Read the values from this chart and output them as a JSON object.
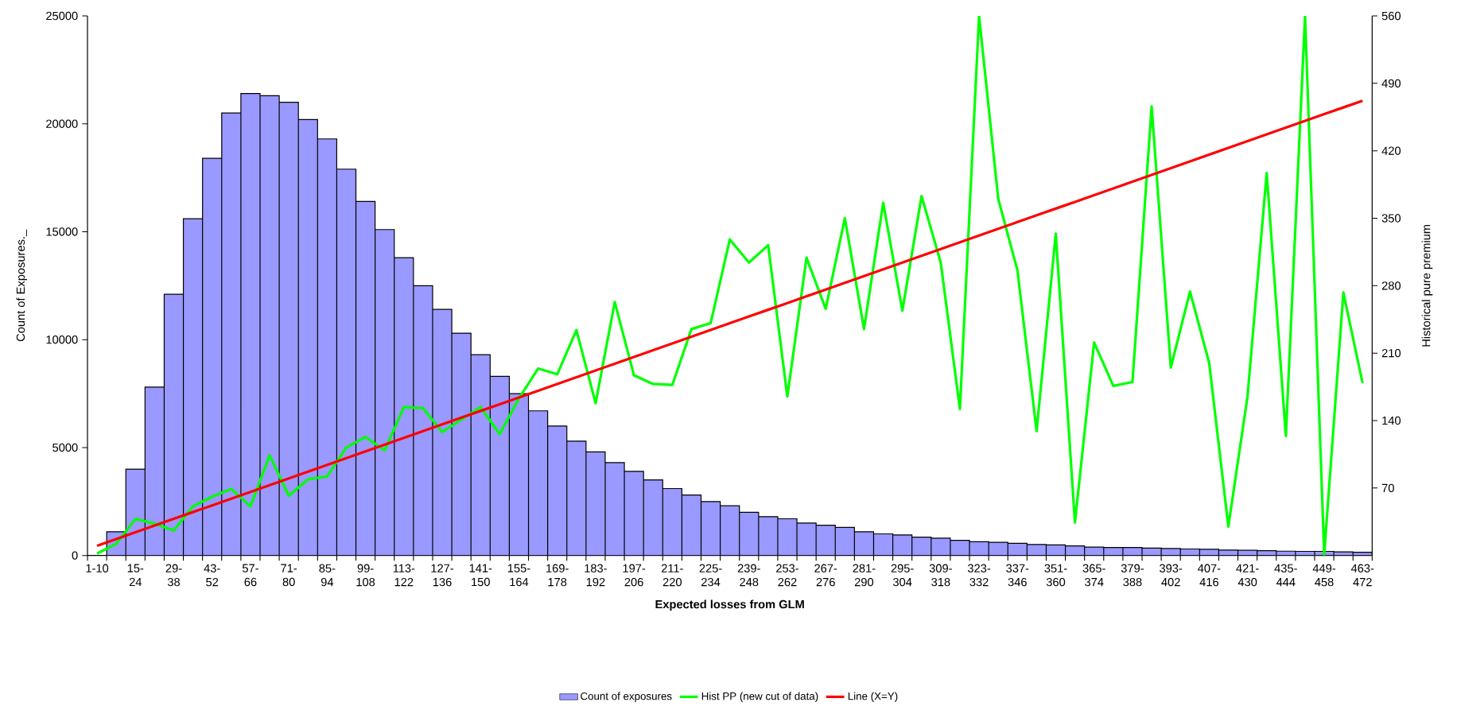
{
  "chart_data": {
    "type": "bar",
    "xlabel": "Expected losses from GLM",
    "ylabel": "Count of Exposures._",
    "y2label": "Historical pure premium",
    "categories": [
      "1-10",
      null,
      "15-24",
      null,
      "29-38",
      null,
      "43-52",
      null,
      "57-66",
      null,
      "71-80",
      null,
      "85-94",
      null,
      "99-108",
      null,
      "113-122",
      null,
      "127-136",
      null,
      "141-150",
      null,
      "155-164",
      null,
      "169-178",
      null,
      "183-192",
      null,
      "197-206",
      null,
      "211-220",
      null,
      "225-234",
      null,
      "239-248",
      null,
      "253-262",
      null,
      "267-276",
      null,
      "281-290",
      null,
      "295-304",
      null,
      "309-318",
      null,
      "323-332",
      null,
      "337-346",
      null,
      "351-360",
      null,
      "365-374",
      null,
      "379-388",
      null,
      "393-402",
      null,
      "407-416",
      null,
      "421-430",
      null,
      "435-444",
      null,
      "449-458",
      null,
      "463-472"
    ],
    "ylim": [
      0,
      25000
    ],
    "yticks": [
      0,
      5000,
      10000,
      15000,
      20000,
      25000
    ],
    "y2lim": [
      0,
      560
    ],
    "y2ticks": [
      70,
      140,
      210,
      280,
      350,
      420,
      490,
      560
    ],
    "legend": "bottom",
    "marker": "none",
    "series": [
      {
        "name": "Count of exposures",
        "color": "#9999ff",
        "values": [
          null,
          1100,
          4000,
          7800,
          12100,
          15600,
          18400,
          20500,
          21400,
          21300,
          21000,
          20200,
          19300,
          17900,
          16400,
          15100,
          13800,
          12500,
          11400,
          10300,
          9300,
          8300,
          7500,
          6700,
          6000,
          5300,
          4800,
          4300,
          3900,
          3500,
          3100,
          2800,
          2500,
          2300,
          2000,
          1800,
          1700,
          1500,
          1400,
          1300,
          1100,
          1000,
          950,
          850,
          800,
          700,
          640,
          610,
          560,
          510,
          490,
          440,
          390,
          370,
          370,
          340,
          320,
          300,
          290,
          250,
          240,
          220,
          200,
          190,
          190,
          170,
          150
        ]
      },
      {
        "name": "Hist PP (new cut of data)",
        "type": "line",
        "axis": "y2",
        "color": "#00ff00",
        "values": [
          2,
          12,
          38,
          33,
          26,
          51,
          61,
          69,
          51,
          104,
          62,
          79,
          82,
          112,
          123,
          109,
          154,
          153,
          128,
          141,
          154,
          126,
          163,
          194,
          188,
          234,
          158,
          263,
          187,
          178,
          177,
          235,
          241,
          328,
          304,
          322,
          165,
          309,
          256,
          350,
          235,
          366,
          254,
          373,
          304,
          152,
          560,
          370,
          296,
          129,
          334,
          34,
          221,
          176,
          180,
          466,
          195,
          274,
          200,
          30,
          165,
          397,
          124,
          560,
          1,
          273,
          179
        ]
      },
      {
        "name": "Line (X=Y)",
        "type": "line",
        "axis": "y2",
        "color": "#ff0000",
        "values": [
          10,
          17,
          24,
          31,
          38,
          45,
          52,
          59,
          66,
          73,
          80,
          87,
          94,
          101,
          108,
          115,
          122,
          129,
          136,
          143,
          150,
          157,
          164,
          171,
          178,
          185,
          192,
          199,
          206,
          213,
          220,
          227,
          234,
          241,
          248,
          255,
          262,
          269,
          276,
          283,
          290,
          297,
          304,
          311,
          318,
          325,
          332,
          339,
          346,
          353,
          360,
          367,
          374,
          381,
          388,
          395,
          402,
          409,
          416,
          423,
          430,
          437,
          444,
          451,
          458,
          465,
          472
        ]
      }
    ]
  }
}
